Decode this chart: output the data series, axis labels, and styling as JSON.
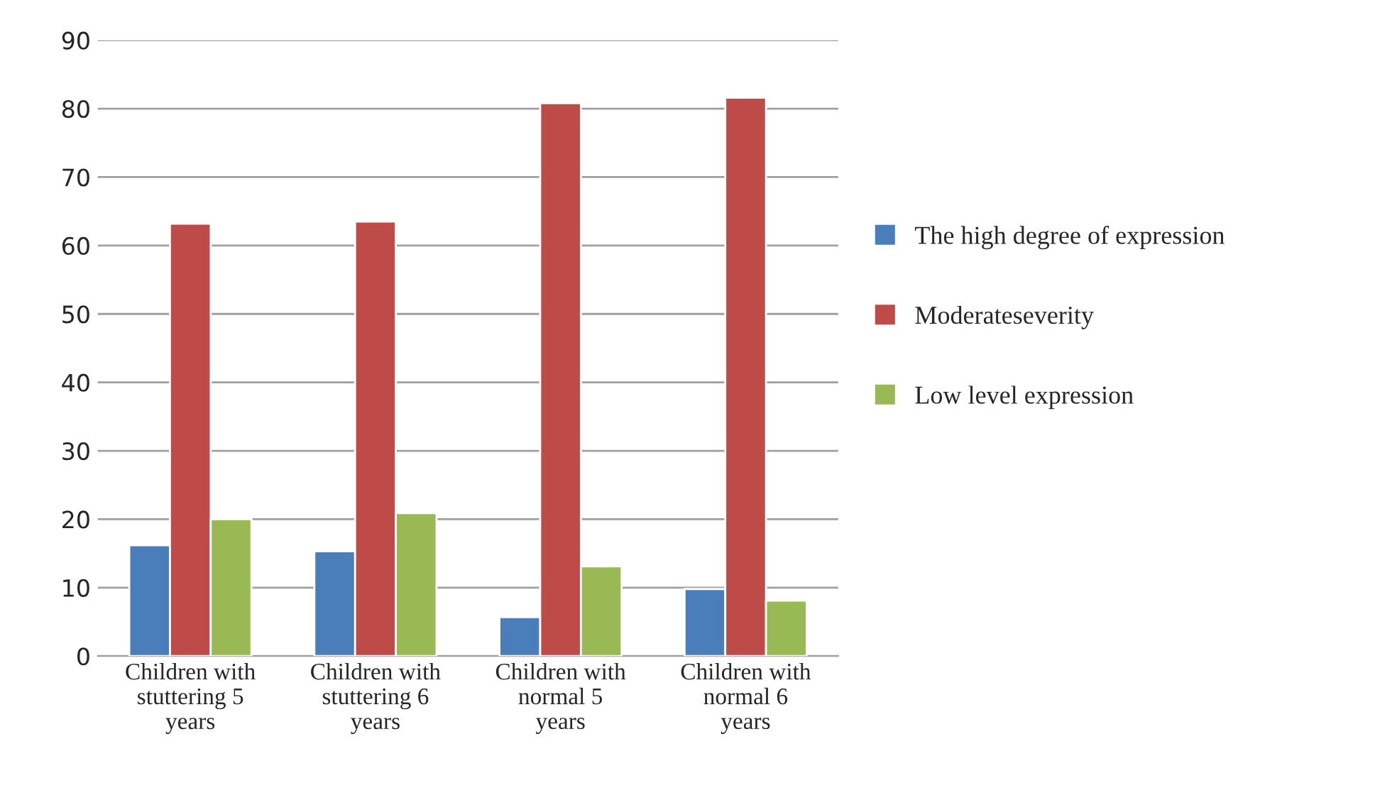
{
  "chart_data": {
    "type": "bar",
    "categories": [
      "Children with stuttering 5 years",
      "Children with stuttering 6 years",
      "Children with normal 5 years",
      "Children with normal 6 years"
    ],
    "series": [
      {
        "name": "The high degree of expression",
        "color": "#4a7ebb",
        "values": [
          16.2,
          15.3,
          5.7,
          9.8
        ]
      },
      {
        "name": "Moderateseverity",
        "color": "#be4b48",
        "values": [
          63.2,
          63.5,
          80.8,
          81.6
        ]
      },
      {
        "name": "Low level expression",
        "color": "#98b954",
        "values": [
          20.0,
          20.9,
          13.1,
          8.1
        ]
      }
    ],
    "ylim": [
      0,
      90
    ],
    "yticks": [
      0,
      10,
      20,
      30,
      40,
      50,
      60,
      70,
      80,
      90
    ],
    "grid": "y",
    "legend": "right"
  }
}
